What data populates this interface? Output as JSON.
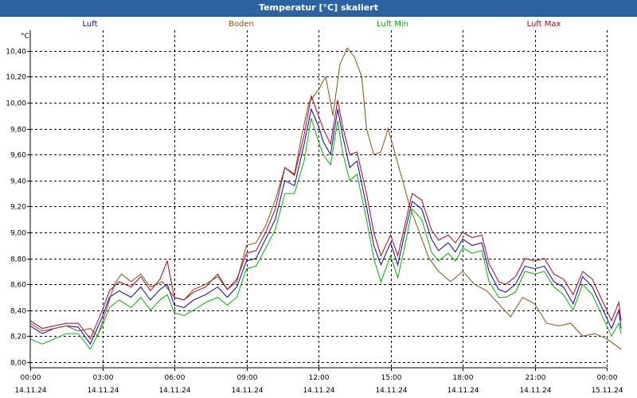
{
  "window": {
    "title": "Temperatur [°C] skaliert"
  },
  "colors": {
    "titlebar": "#2d63a0",
    "luft": "#0000c8",
    "boden": "#8b4f10",
    "luft_min": "#00b400",
    "luft_max": "#b4001e",
    "grid": "#000000"
  },
  "chart_data": {
    "type": "line",
    "title": "Temperatur [°C] skaliert",
    "ylabel": "°C",
    "xlabel": "",
    "ylim": [
      8.0,
      10.5
    ],
    "xlim": [
      0,
      24
    ],
    "x_unit": "hours from 14.11.24 00:00",
    "grid": true,
    "legend_position": "top",
    "yticks": [
      "8,00",
      "8,20",
      "8,40",
      "8,60",
      "8,80",
      "9,00",
      "9,20",
      "9,40",
      "9,60",
      "9,80",
      "10,00",
      "10,20",
      "10,40"
    ],
    "xticks": [
      {
        "time": "00:00",
        "date": "14.11.24"
      },
      {
        "time": "03:00",
        "date": "14.11.24"
      },
      {
        "time": "06:00",
        "date": "14.11.24"
      },
      {
        "time": "09:00",
        "date": "14.11.24"
      },
      {
        "time": "12:00",
        "date": "14.11.24"
      },
      {
        "time": "15:00",
        "date": "14.11.24"
      },
      {
        "time": "18:00",
        "date": "14.11.24"
      },
      {
        "time": "21:00",
        "date": "14.11.24"
      },
      {
        "time": "00:00",
        "date": "15.11.24"
      }
    ],
    "series": [
      {
        "name": "Luft",
        "color": "#0000c8",
        "points": [
          [
            0,
            8.28
          ],
          [
            0.5,
            8.22
          ],
          [
            1,
            8.26
          ],
          [
            1.5,
            8.28
          ],
          [
            2,
            8.27
          ],
          [
            2.5,
            8.14
          ],
          [
            3,
            8.35
          ],
          [
            3.3,
            8.5
          ],
          [
            3.7,
            8.55
          ],
          [
            4.2,
            8.5
          ],
          [
            4.6,
            8.58
          ],
          [
            5,
            8.48
          ],
          [
            5.4,
            8.56
          ],
          [
            5.7,
            8.6
          ],
          [
            6,
            8.44
          ],
          [
            6.4,
            8.42
          ],
          [
            6.8,
            8.48
          ],
          [
            7.3,
            8.52
          ],
          [
            7.8,
            8.58
          ],
          [
            8.2,
            8.5
          ],
          [
            8.6,
            8.58
          ],
          [
            9,
            8.78
          ],
          [
            9.4,
            8.8
          ],
          [
            9.8,
            8.95
          ],
          [
            10.2,
            9.1
          ],
          [
            10.6,
            9.4
          ],
          [
            11,
            9.36
          ],
          [
            11.4,
            9.68
          ],
          [
            11.7,
            9.95
          ],
          [
            12,
            9.82
          ],
          [
            12.2,
            9.7
          ],
          [
            12.5,
            9.6
          ],
          [
            12.8,
            9.95
          ],
          [
            13,
            9.75
          ],
          [
            13.3,
            9.5
          ],
          [
            13.6,
            9.55
          ],
          [
            14,
            9.2
          ],
          [
            14.3,
            8.9
          ],
          [
            14.6,
            8.75
          ],
          [
            15,
            8.92
          ],
          [
            15.3,
            8.75
          ],
          [
            15.6,
            9.0
          ],
          [
            15.9,
            9.24
          ],
          [
            16.3,
            9.18
          ],
          [
            16.7,
            8.95
          ],
          [
            17,
            8.86
          ],
          [
            17.4,
            8.92
          ],
          [
            17.7,
            8.85
          ],
          [
            18,
            8.95
          ],
          [
            18.4,
            8.9
          ],
          [
            18.8,
            8.92
          ],
          [
            19.1,
            8.7
          ],
          [
            19.5,
            8.56
          ],
          [
            19.8,
            8.54
          ],
          [
            20.2,
            8.6
          ],
          [
            20.6,
            8.74
          ],
          [
            21,
            8.72
          ],
          [
            21.4,
            8.74
          ],
          [
            21.8,
            8.62
          ],
          [
            22.2,
            8.58
          ],
          [
            22.6,
            8.45
          ],
          [
            23,
            8.66
          ],
          [
            23.4,
            8.58
          ],
          [
            23.8,
            8.42
          ],
          [
            24.2,
            8.26
          ],
          [
            24.5,
            8.4
          ],
          [
            24.6,
            8.26
          ]
        ]
      },
      {
        "name": "Boden",
        "color": "#8b4f10",
        "points": [
          [
            0,
            8.3
          ],
          [
            0.5,
            8.24
          ],
          [
            1,
            8.26
          ],
          [
            1.5,
            8.28
          ],
          [
            2,
            8.24
          ],
          [
            2.5,
            8.26
          ],
          [
            2.8,
            8.2
          ],
          [
            3.2,
            8.42
          ],
          [
            3.5,
            8.6
          ],
          [
            3.8,
            8.68
          ],
          [
            4.2,
            8.62
          ],
          [
            4.6,
            8.68
          ],
          [
            5,
            8.58
          ],
          [
            5.5,
            8.62
          ],
          [
            6,
            8.5
          ],
          [
            6.4,
            8.48
          ],
          [
            6.8,
            8.56
          ],
          [
            7.3,
            8.6
          ],
          [
            7.8,
            8.66
          ],
          [
            8.2,
            8.56
          ],
          [
            8.6,
            8.62
          ],
          [
            9,
            8.9
          ],
          [
            9.4,
            8.92
          ],
          [
            9.8,
            9.05
          ],
          [
            10.2,
            9.25
          ],
          [
            10.6,
            9.5
          ],
          [
            11,
            9.45
          ],
          [
            11.3,
            9.75
          ],
          [
            11.6,
            10.0
          ],
          [
            12,
            10.1
          ],
          [
            12.3,
            10.2
          ],
          [
            12.6,
            9.9
          ],
          [
            12.9,
            10.3
          ],
          [
            13.2,
            10.42
          ],
          [
            13.5,
            10.35
          ],
          [
            13.8,
            10.2
          ],
          [
            14,
            9.8
          ],
          [
            14.3,
            9.6
          ],
          [
            14.6,
            9.62
          ],
          [
            14.9,
            9.8
          ],
          [
            15.2,
            9.6
          ],
          [
            15.5,
            9.4
          ],
          [
            15.8,
            9.2
          ],
          [
            16.2,
            9.0
          ],
          [
            16.6,
            8.8
          ],
          [
            17,
            8.7
          ],
          [
            17.5,
            8.62
          ],
          [
            18,
            8.7
          ],
          [
            18.5,
            8.6
          ],
          [
            19,
            8.55
          ],
          [
            19.5,
            8.45
          ],
          [
            20,
            8.35
          ],
          [
            20.5,
            8.5
          ],
          [
            21,
            8.45
          ],
          [
            21.5,
            8.3
          ],
          [
            22,
            8.28
          ],
          [
            22.5,
            8.3
          ],
          [
            23,
            8.2
          ],
          [
            23.5,
            8.22
          ],
          [
            24,
            8.18
          ],
          [
            24.3,
            8.14
          ],
          [
            24.6,
            8.1
          ]
        ]
      },
      {
        "name": "Luft Min",
        "color": "#00b400",
        "points": [
          [
            0,
            8.18
          ],
          [
            0.5,
            8.14
          ],
          [
            1,
            8.18
          ],
          [
            1.5,
            8.22
          ],
          [
            2,
            8.22
          ],
          [
            2.5,
            8.1
          ],
          [
            3,
            8.28
          ],
          [
            3.3,
            8.42
          ],
          [
            3.7,
            8.48
          ],
          [
            4.2,
            8.42
          ],
          [
            4.6,
            8.5
          ],
          [
            5,
            8.4
          ],
          [
            5.4,
            8.48
          ],
          [
            5.7,
            8.52
          ],
          [
            6,
            8.38
          ],
          [
            6.4,
            8.36
          ],
          [
            6.8,
            8.4
          ],
          [
            7.3,
            8.46
          ],
          [
            7.8,
            8.5
          ],
          [
            8.2,
            8.44
          ],
          [
            8.6,
            8.5
          ],
          [
            9,
            8.72
          ],
          [
            9.4,
            8.74
          ],
          [
            9.8,
            8.88
          ],
          [
            10.2,
            9.02
          ],
          [
            10.6,
            9.3
          ],
          [
            11,
            9.3
          ],
          [
            11.4,
            9.55
          ],
          [
            11.7,
            9.88
          ],
          [
            12,
            9.7
          ],
          [
            12.2,
            9.6
          ],
          [
            12.5,
            9.52
          ],
          [
            12.8,
            9.86
          ],
          [
            13,
            9.62
          ],
          [
            13.3,
            9.4
          ],
          [
            13.6,
            9.45
          ],
          [
            14,
            9.1
          ],
          [
            14.3,
            8.8
          ],
          [
            14.6,
            8.62
          ],
          [
            15,
            8.82
          ],
          [
            15.3,
            8.65
          ],
          [
            15.6,
            8.9
          ],
          [
            15.9,
            9.18
          ],
          [
            16.3,
            9.1
          ],
          [
            16.7,
            8.85
          ],
          [
            17,
            8.78
          ],
          [
            17.4,
            8.84
          ],
          [
            17.7,
            8.78
          ],
          [
            18,
            8.88
          ],
          [
            18.4,
            8.84
          ],
          [
            18.8,
            8.86
          ],
          [
            19.1,
            8.62
          ],
          [
            19.5,
            8.5
          ],
          [
            19.8,
            8.5
          ],
          [
            20.2,
            8.54
          ],
          [
            20.6,
            8.7
          ],
          [
            21,
            8.68
          ],
          [
            21.4,
            8.7
          ],
          [
            21.8,
            8.58
          ],
          [
            22.2,
            8.52
          ],
          [
            22.6,
            8.4
          ],
          [
            23,
            8.6
          ],
          [
            23.4,
            8.52
          ],
          [
            23.8,
            8.36
          ],
          [
            24.2,
            8.2
          ],
          [
            24.5,
            8.3
          ],
          [
            24.6,
            8.22
          ]
        ]
      },
      {
        "name": "Luft Max",
        "color": "#b4001e",
        "points": [
          [
            0,
            8.32
          ],
          [
            0.5,
            8.26
          ],
          [
            1,
            8.28
          ],
          [
            1.5,
            8.3
          ],
          [
            2,
            8.3
          ],
          [
            2.5,
            8.18
          ],
          [
            3,
            8.4
          ],
          [
            3.3,
            8.55
          ],
          [
            3.7,
            8.62
          ],
          [
            4.2,
            8.58
          ],
          [
            4.6,
            8.66
          ],
          [
            5,
            8.55
          ],
          [
            5.4,
            8.64
          ],
          [
            5.7,
            8.78
          ],
          [
            6,
            8.5
          ],
          [
            6.4,
            8.48
          ],
          [
            6.8,
            8.54
          ],
          [
            7.3,
            8.58
          ],
          [
            7.8,
            8.68
          ],
          [
            8.2,
            8.56
          ],
          [
            8.6,
            8.64
          ],
          [
            9,
            8.84
          ],
          [
            9.4,
            8.86
          ],
          [
            9.8,
            9.0
          ],
          [
            10.2,
            9.18
          ],
          [
            10.6,
            9.5
          ],
          [
            11,
            9.44
          ],
          [
            11.4,
            9.75
          ],
          [
            11.7,
            10.05
          ],
          [
            12,
            9.9
          ],
          [
            12.2,
            9.8
          ],
          [
            12.5,
            9.68
          ],
          [
            12.8,
            10.02
          ],
          [
            13,
            9.82
          ],
          [
            13.3,
            9.6
          ],
          [
            13.6,
            9.62
          ],
          [
            14,
            9.3
          ],
          [
            14.3,
            9.0
          ],
          [
            14.6,
            8.82
          ],
          [
            15,
            8.98
          ],
          [
            15.3,
            8.82
          ],
          [
            15.6,
            9.06
          ],
          [
            15.9,
            9.3
          ],
          [
            16.3,
            9.25
          ],
          [
            16.7,
            9.02
          ],
          [
            17,
            8.94
          ],
          [
            17.4,
            8.98
          ],
          [
            17.7,
            8.92
          ],
          [
            18,
            9.0
          ],
          [
            18.4,
            8.96
          ],
          [
            18.8,
            8.98
          ],
          [
            19.1,
            8.76
          ],
          [
            19.5,
            8.62
          ],
          [
            19.8,
            8.6
          ],
          [
            20.2,
            8.66
          ],
          [
            20.6,
            8.8
          ],
          [
            21,
            8.78
          ],
          [
            21.4,
            8.8
          ],
          [
            21.8,
            8.68
          ],
          [
            22.2,
            8.64
          ],
          [
            22.6,
            8.52
          ],
          [
            23,
            8.7
          ],
          [
            23.4,
            8.64
          ],
          [
            23.8,
            8.48
          ],
          [
            24.2,
            8.32
          ],
          [
            24.5,
            8.46
          ],
          [
            24.6,
            8.32
          ]
        ]
      }
    ]
  }
}
